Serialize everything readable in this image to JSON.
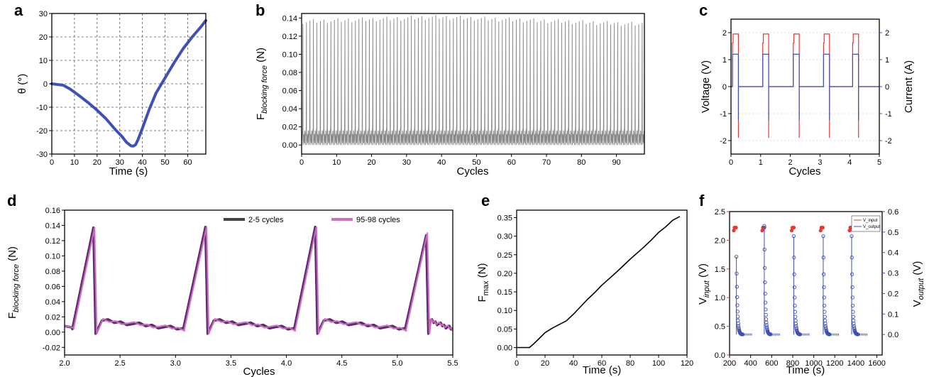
{
  "colors": {
    "blue": "#3f51b5",
    "red": "#e53935",
    "gray": "#8a8a8a",
    "dark": "#444444",
    "magenta": "#d16ec0",
    "purple": "#5b2c70"
  },
  "chart_data": [
    {
      "id": "a",
      "panel_label": "a",
      "type": "line",
      "xlabel": "Time (s)",
      "ylabel": "θ (°)",
      "xlim": [
        0,
        68
      ],
      "ylim": [
        -30,
        30
      ],
      "grid": true,
      "xticks": [
        "0",
        "10",
        "20",
        "30",
        "40",
        "50",
        "60"
      ],
      "yticks": [
        "-30",
        "-20",
        "-10",
        "0",
        "10",
        "20",
        "30"
      ],
      "series": [
        {
          "x": [
            0,
            5,
            8,
            12,
            16,
            20,
            24,
            28,
            31,
            33,
            35,
            36,
            37,
            38,
            40,
            43,
            46,
            50,
            54,
            58,
            62,
            66,
            68
          ],
          "y": [
            0,
            -0.6,
            -2.2,
            -5,
            -8,
            -11.3,
            -15,
            -19.5,
            -22.5,
            -25,
            -26.5,
            -26.6,
            -26,
            -24,
            -19,
            -11,
            -4,
            2.5,
            9,
            15,
            20,
            24.5,
            27
          ]
        }
      ]
    },
    {
      "id": "b",
      "panel_label": "b",
      "type": "line",
      "xlabel": "Cycles",
      "ylabel_main": "F",
      "ylabel_sub": "blocking force",
      "ylabel_unit": " (N)",
      "xlim": [
        0,
        98
      ],
      "ylim": [
        -0.01,
        0.145
      ],
      "xticks": [
        "0",
        "10",
        "20",
        "30",
        "40",
        "50",
        "60",
        "70",
        "80",
        "90"
      ],
      "yticks": [
        "0.00",
        "0.02",
        "0.04",
        "0.06",
        "0.08",
        "0.10",
        "0.12",
        "0.14"
      ],
      "series": [
        {
          "description": "periodic spikes once per cycle over 98 cycles; peak ~0.13-0.14 N, baseline ~0.00-0.02 N",
          "cycles": 98,
          "peak_start": 0.136,
          "peak_mid": 0.141,
          "peak_end": 0.133,
          "baseline_low": 0.0,
          "baseline_high": 0.02
        }
      ]
    },
    {
      "id": "c",
      "panel_label": "c",
      "type": "line",
      "xlabel": "Cycles",
      "ylabel": "Voltage (V)",
      "ylabel_right": "Current (A)",
      "xlim": [
        0,
        5
      ],
      "ylim": [
        -2.5,
        2.5
      ],
      "ylim_right": [
        -2.5,
        2.5
      ],
      "xticks": [
        "0",
        "1",
        "2",
        "3",
        "4",
        "5"
      ],
      "yticks": [
        "-2",
        "-1",
        "0",
        "1",
        "2"
      ],
      "yticks_right": [
        "-2",
        "-1",
        "0",
        "1",
        "2"
      ],
      "series": [
        {
          "name": "Voltage",
          "color": "red",
          "plateau_high": 1.95,
          "plateau_step": 1.62,
          "negative_spike": -1.9,
          "pulse_starts": [
            0.05,
            1.07,
            2.1,
            3.12,
            4.1
          ],
          "pulse_width": 0.2
        },
        {
          "name": "Current",
          "color": "blue",
          "plateau_high": 1.2,
          "negative_spike": -1.25,
          "pulse_starts": [
            0.05,
            1.07,
            2.1,
            3.12,
            4.1
          ],
          "pulse_width": 0.2
        }
      ]
    },
    {
      "id": "d",
      "panel_label": "d",
      "type": "line",
      "xlabel": "Cycles",
      "ylabel_main": "F",
      "ylabel_sub": "blocking force",
      "ylabel_unit": " (N)",
      "xlim": [
        2.0,
        5.5
      ],
      "ylim": [
        -0.03,
        0.16
      ],
      "xticks": [
        "2.0",
        "2.5",
        "3.0",
        "3.5",
        "4.0",
        "4.5",
        "5.0",
        "5.5"
      ],
      "yticks": [
        "-0.02",
        "0.00",
        "0.02",
        "0.04",
        "0.06",
        "0.08",
        "0.10",
        "0.12",
        "0.14",
        "0.16"
      ],
      "legend": [
        "2-5 cycles",
        "95-98 cycles"
      ],
      "series": [
        {
          "name": "2-5 cycles",
          "color": "dark",
          "rise_starts": [
            2.07,
            3.07,
            4.07,
            5.07
          ],
          "peak_x": [
            2.26,
            3.27,
            4.26,
            5.26
          ],
          "peak_y": [
            0.137,
            0.138,
            0.138,
            0.127
          ]
        },
        {
          "name": "95-98 cycles",
          "color": "magenta",
          "rise_starts": [
            2.08,
            3.08,
            4.08,
            5.08
          ],
          "peak_x": [
            2.27,
            3.28,
            4.27,
            5.27
          ],
          "peak_y": [
            0.137,
            0.138,
            0.138,
            0.13
          ]
        }
      ]
    },
    {
      "id": "e",
      "panel_label": "e",
      "type": "line",
      "xlabel": "Time (s)",
      "ylabel_main": "F",
      "ylabel_sub": "max",
      "ylabel_unit": " (N)",
      "xlim": [
        0,
        120
      ],
      "ylim": [
        -0.02,
        0.37
      ],
      "xticks": [
        "0",
        "20",
        "40",
        "60",
        "80",
        "100",
        "120"
      ],
      "yticks": [
        "0.00",
        "0.05",
        "0.10",
        "0.15",
        "0.20",
        "0.25",
        "0.30",
        "0.35"
      ],
      "series": [
        {
          "x": [
            0,
            5,
            9,
            12,
            16,
            20,
            25,
            30,
            35,
            40,
            45,
            50,
            55,
            60,
            65,
            70,
            75,
            80,
            85,
            90,
            95,
            100,
            105,
            110,
            115
          ],
          "y": [
            0.0,
            0.0,
            0.0,
            0.01,
            0.025,
            0.04,
            0.052,
            0.062,
            0.072,
            0.09,
            0.11,
            0.13,
            0.148,
            0.168,
            0.185,
            0.202,
            0.22,
            0.238,
            0.255,
            0.272,
            0.29,
            0.31,
            0.325,
            0.343,
            0.353
          ]
        }
      ]
    },
    {
      "id": "f",
      "panel_label": "f",
      "type": "scatter",
      "xlabel": "Time (s)",
      "ylabel_main": "V",
      "ylabel_sub": "input",
      "ylabel_unit": " (V)",
      "ylabel_right_main": "V",
      "ylabel_right_sub": "output",
      "ylabel_right_unit": " (V)",
      "xlim": [
        200,
        1650
      ],
      "ylim": [
        0,
        2.5
      ],
      "ylim_right": [
        -0.1,
        0.6
      ],
      "xticks": [
        "200",
        "400",
        "600",
        "800",
        "1000",
        "1200",
        "1400",
        "1600"
      ],
      "yticks": [
        "0.0",
        "0.5",
        "1.0",
        "1.5",
        "2.0",
        "2.5"
      ],
      "yticks_right": [
        "0.0",
        "0.1",
        "0.2",
        "0.3",
        "0.4",
        "0.5",
        "0.6"
      ],
      "legend": [
        "V_input",
        "V_output"
      ],
      "series": [
        {
          "name": "V_input",
          "color": "red",
          "pulse_starts": [
            240,
            510,
            790,
            1065,
            1340
          ],
          "level": 2.22
        },
        {
          "name": "V_output",
          "color": "blue",
          "pulse_starts": [
            265,
            530,
            810,
            1090,
            1360
          ],
          "peaks": [
            0.38,
            0.53,
            0.48,
            0.48,
            0.48
          ],
          "floor": 0.0
        }
      ]
    }
  ]
}
